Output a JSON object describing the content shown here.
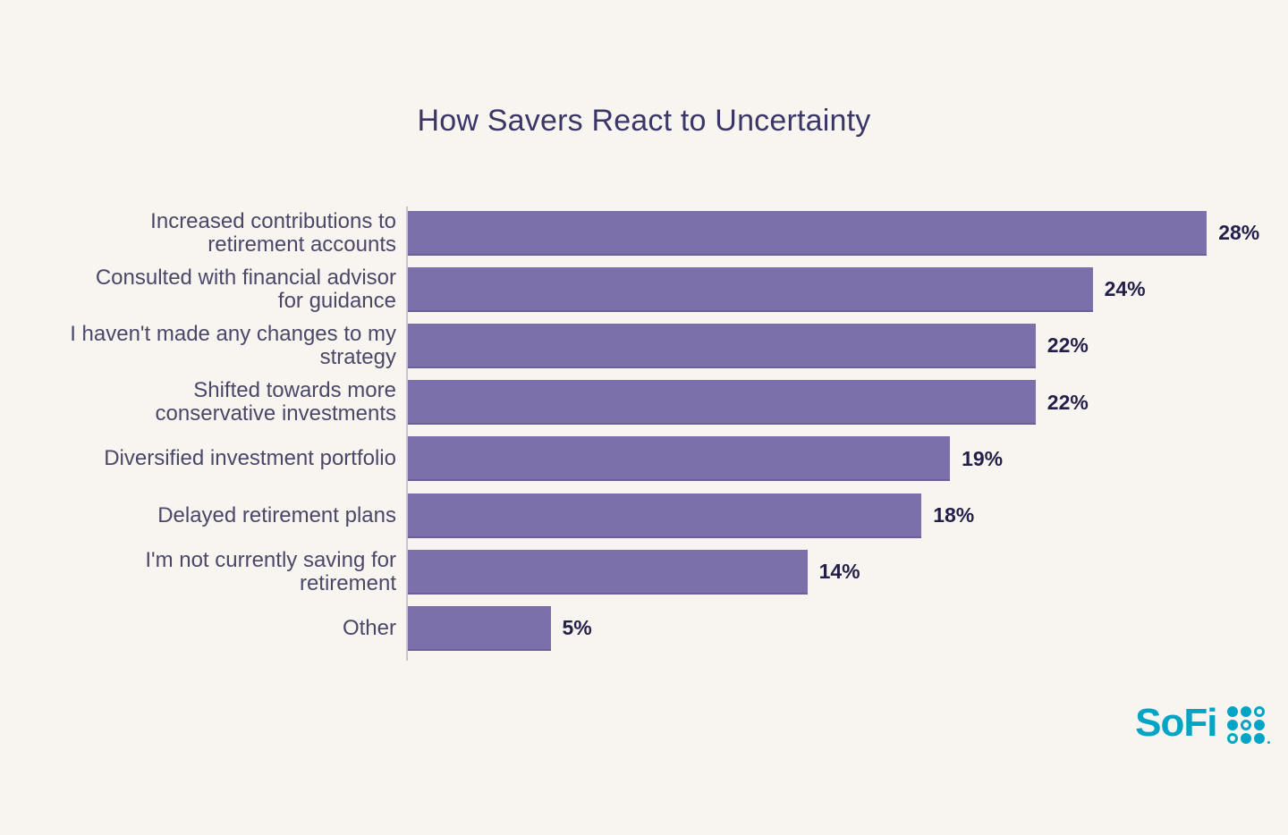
{
  "page": {
    "background_color": "#f8f5f0"
  },
  "chart_data": {
    "type": "bar",
    "orientation": "horizontal",
    "title": "How Savers React to Uncertainty",
    "categories": [
      "Increased contributions to retirement accounts",
      "Consulted with financial advisor for guidance",
      "I haven't made any changes to my strategy",
      "Shifted towards more conservative investments",
      "Diversified investment portfolio",
      "Delayed retirement plans",
      "I'm not currently saving for retirement",
      "Other"
    ],
    "category_lines": [
      [
        "Increased contributions to",
        "retirement accounts"
      ],
      [
        "Consulted with financial advisor",
        "for guidance"
      ],
      [
        "I haven't made any changes to my",
        "strategy"
      ],
      [
        "Shifted towards more",
        "conservative investments"
      ],
      [
        "Diversified investment portfolio"
      ],
      [
        "Delayed retirement plans"
      ],
      [
        "I'm not currently saving for",
        "retirement"
      ],
      [
        "Other"
      ]
    ],
    "values": [
      28,
      24,
      22,
      22,
      19,
      18,
      14,
      5
    ],
    "value_labels": [
      "28%",
      "24%",
      "22%",
      "22%",
      "19%",
      "18%",
      "14%",
      "5%"
    ],
    "xlabel": "",
    "ylabel": "",
    "xlim": [
      0,
      31
    ],
    "grid": false,
    "legend": null,
    "bar_color": "#7b70aa",
    "title_color": "#3a3768",
    "category_label_color": "#4a4768",
    "value_label_color": "#231e4a",
    "axis_line_color": "#c7c4d0"
  },
  "branding": {
    "logo_text": "SoFi",
    "logo_mark": "dot-grid-icon",
    "logo_color": "#00a5c6"
  }
}
